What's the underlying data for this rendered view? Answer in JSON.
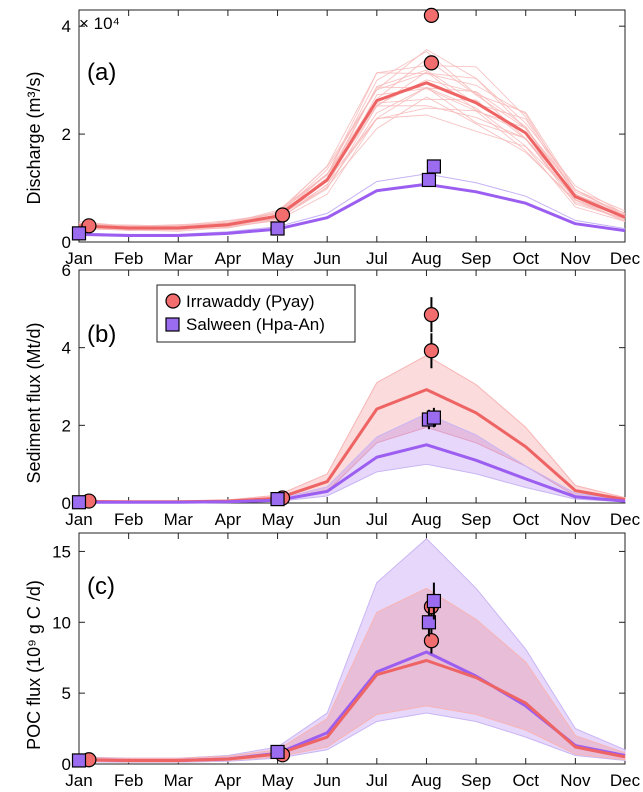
{
  "figure": {
    "legend": [
      {
        "label": "Irrawaddy (Pyay)",
        "color": "#f26d6d",
        "marker": "circle"
      },
      {
        "label": "Salween (Hpa-An)",
        "color": "#9b6cf0",
        "marker": "square"
      }
    ],
    "colors": {
      "irrawaddy": "#ee6464",
      "irrawaddy_light": "#f8b4b4",
      "salween": "#9b5ef0",
      "salween_light": "#c9b6f3"
    }
  },
  "chart_data": [
    {
      "type": "line",
      "panel_label": "(a)",
      "ylabel": "Discharge (m³/s)",
      "y_multiplier": "× 10⁴",
      "categories": [
        "Jan",
        "Feb",
        "Mar",
        "Apr",
        "May",
        "Jun",
        "Jul",
        "Aug",
        "Sep",
        "Oct",
        "Nov",
        "Dec"
      ],
      "xticks": [
        "Jan",
        "Feb",
        "Mar",
        "Apr",
        "May",
        "Jun",
        "Jul",
        "Aug",
        "Sep",
        "Oct",
        "Nov",
        "Dec"
      ],
      "yticks": [
        "0",
        "2",
        "4"
      ],
      "ylim": [
        0,
        4.3
      ],
      "series": [
        {
          "name": "Irrawaddy (Pyay)",
          "values": [
            0.3,
            0.26,
            0.26,
            0.32,
            0.48,
            1.15,
            2.62,
            2.95,
            2.58,
            2.02,
            0.84,
            0.46
          ]
        },
        {
          "name": "Salween (Hpa-An)",
          "values": [
            0.14,
            0.12,
            0.12,
            0.16,
            0.24,
            0.45,
            0.95,
            1.07,
            0.93,
            0.72,
            0.34,
            0.21
          ]
        }
      ],
      "observations": [
        {
          "series": "Irrawaddy (Pyay)",
          "x": 1.2,
          "y": 0.3
        },
        {
          "series": "Irrawaddy (Pyay)",
          "x": 5.1,
          "y": 0.5
        },
        {
          "series": "Irrawaddy (Pyay)",
          "x": 8.1,
          "y": 4.2
        },
        {
          "series": "Irrawaddy (Pyay)",
          "x": 8.1,
          "y": 3.32
        },
        {
          "series": "Salween (Hpa-An)",
          "x": 1.0,
          "y": 0.16
        },
        {
          "series": "Salween (Hpa-An)",
          "x": 5.0,
          "y": 0.25
        },
        {
          "series": "Salween (Hpa-An)",
          "x": 8.05,
          "y": 1.15
        },
        {
          "series": "Salween (Hpa-An)",
          "x": 8.15,
          "y": 1.4
        }
      ]
    },
    {
      "type": "area",
      "panel_label": "(b)",
      "ylabel": "Sediment flux (Mt/d)",
      "categories": [
        "Jan",
        "Feb",
        "Mar",
        "Apr",
        "May",
        "Jun",
        "Jul",
        "Aug",
        "Sep",
        "Oct",
        "Nov",
        "Dec"
      ],
      "xticks": [
        "Jan",
        "Feb",
        "Mar",
        "Apr",
        "May",
        "Jun",
        "Jul",
        "Aug",
        "Sep",
        "Oct",
        "Nov",
        "Dec"
      ],
      "yticks": [
        "0",
        "2",
        "4",
        "6"
      ],
      "ylim": [
        0,
        6
      ],
      "series": [
        {
          "name": "Irrawaddy (Pyay)",
          "values": [
            0.04,
            0.03,
            0.03,
            0.05,
            0.12,
            0.55,
            2.42,
            2.92,
            2.32,
            1.45,
            0.32,
            0.09
          ],
          "lower": [
            0.02,
            0.02,
            0.02,
            0.03,
            0.07,
            0.3,
            1.55,
            1.95,
            1.55,
            0.95,
            0.18,
            0.05
          ],
          "upper": [
            0.06,
            0.05,
            0.05,
            0.08,
            0.2,
            0.75,
            3.1,
            3.8,
            3.05,
            1.95,
            0.45,
            0.14
          ]
        },
        {
          "name": "Salween (Hpa-An)",
          "values": [
            0.02,
            0.02,
            0.02,
            0.03,
            0.07,
            0.3,
            1.18,
            1.5,
            1.1,
            0.62,
            0.16,
            0.05
          ],
          "lower": [
            0.01,
            0.01,
            0.01,
            0.02,
            0.04,
            0.18,
            0.8,
            1.0,
            0.75,
            0.4,
            0.1,
            0.03
          ],
          "upper": [
            0.04,
            0.03,
            0.03,
            0.05,
            0.1,
            0.42,
            1.7,
            2.3,
            1.75,
            0.95,
            0.25,
            0.08
          ]
        }
      ],
      "observations": [
        {
          "series": "Irrawaddy (Pyay)",
          "x": 1.2,
          "y": 0.05,
          "err": 0.05
        },
        {
          "series": "Irrawaddy (Pyay)",
          "x": 5.1,
          "y": 0.13,
          "err": 0.05
        },
        {
          "series": "Irrawaddy (Pyay)",
          "x": 8.1,
          "y": 4.85,
          "err": 0.45
        },
        {
          "series": "Irrawaddy (Pyay)",
          "x": 8.1,
          "y": 3.92,
          "err": 0.45
        },
        {
          "series": "Salween (Hpa-An)",
          "x": 1.0,
          "y": 0.02,
          "err": 0.03
        },
        {
          "series": "Salween (Hpa-An)",
          "x": 5.0,
          "y": 0.1,
          "err": 0.03
        },
        {
          "series": "Salween (Hpa-An)",
          "x": 8.05,
          "y": 2.15,
          "err": 0.25
        },
        {
          "series": "Salween (Hpa-An)",
          "x": 8.15,
          "y": 2.2,
          "err": 0.25
        }
      ]
    },
    {
      "type": "area",
      "panel_label": "(c)",
      "ylabel": "POC flux (10⁹ g C /d)",
      "categories": [
        "Jan",
        "Feb",
        "Mar",
        "Apr",
        "May",
        "Jun",
        "Jul",
        "Aug",
        "Sep",
        "Oct",
        "Nov",
        "Dec"
      ],
      "xticks": [
        "Jan",
        "Feb",
        "Mar",
        "Apr",
        "May",
        "Jun",
        "Jul",
        "Aug",
        "Sep",
        "Oct",
        "Nov",
        "Dec"
      ],
      "yticks": [
        "0",
        "5",
        "10",
        "15"
      ],
      "ylim": [
        0,
        16.3
      ],
      "series": [
        {
          "name": "Irrawaddy (Pyay)",
          "values": [
            0.3,
            0.25,
            0.25,
            0.35,
            0.7,
            1.9,
            6.3,
            7.3,
            6.1,
            4.3,
            1.2,
            0.5
          ],
          "lower": [
            0.2,
            0.15,
            0.15,
            0.25,
            0.5,
            1.2,
            3.5,
            4.1,
            3.5,
            2.4,
            0.7,
            0.3
          ],
          "upper": [
            0.45,
            0.4,
            0.4,
            0.55,
            1.0,
            3.2,
            10.7,
            12.4,
            10.2,
            7.2,
            2.0,
            0.8
          ]
        },
        {
          "name": "Salween (Hpa-An)",
          "values": [
            0.3,
            0.25,
            0.25,
            0.35,
            0.75,
            2.2,
            6.5,
            7.9,
            6.2,
            4.1,
            1.3,
            0.6
          ],
          "lower": [
            0.15,
            0.12,
            0.12,
            0.2,
            0.4,
            1.0,
            3.0,
            3.6,
            3.0,
            1.9,
            0.6,
            0.25
          ],
          "upper": [
            0.5,
            0.4,
            0.4,
            0.6,
            1.2,
            3.6,
            12.8,
            15.9,
            12.4,
            8.1,
            2.5,
            1.0
          ]
        }
      ],
      "observations": [
        {
          "series": "Irrawaddy (Pyay)",
          "x": 1.2,
          "y": 0.3,
          "err": 0.15
        },
        {
          "series": "Irrawaddy (Pyay)",
          "x": 5.1,
          "y": 0.65,
          "err": 0.15
        },
        {
          "series": "Irrawaddy (Pyay)",
          "x": 8.1,
          "y": 11.1,
          "err": 0.8
        },
        {
          "series": "Irrawaddy (Pyay)",
          "x": 8.1,
          "y": 8.7,
          "err": 0.9
        },
        {
          "series": "Salween (Hpa-An)",
          "x": 1.0,
          "y": 0.25,
          "err": 0.1
        },
        {
          "series": "Salween (Hpa-An)",
          "x": 5.0,
          "y": 0.85,
          "err": 0.1
        },
        {
          "series": "Salween (Hpa-An)",
          "x": 8.05,
          "y": 10.0,
          "err": 1.0
        },
        {
          "series": "Salween (Hpa-An)",
          "x": 8.15,
          "y": 11.5,
          "err": 1.3
        }
      ]
    }
  ]
}
